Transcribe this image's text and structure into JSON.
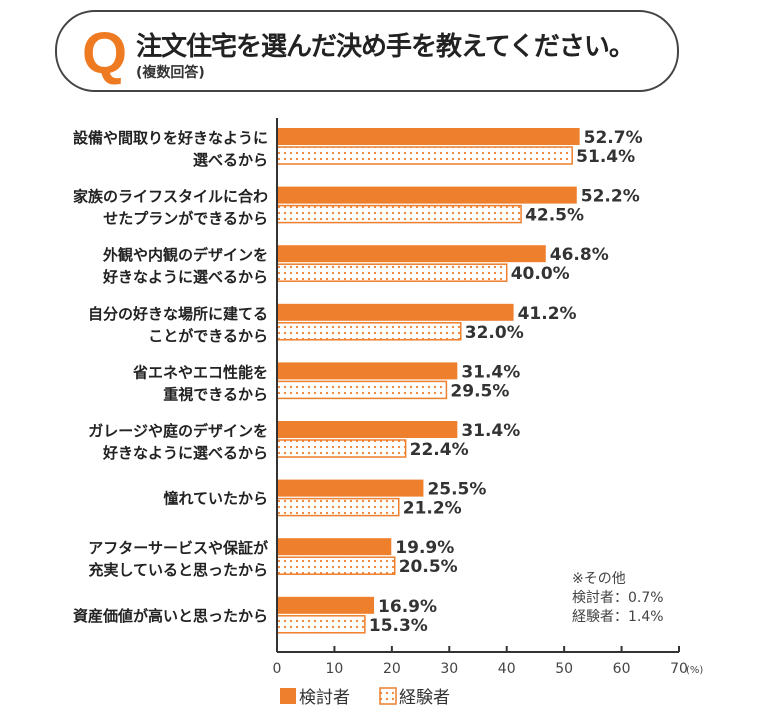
{
  "header": {
    "q_mark": "Q",
    "title": "注文住宅を選んだ決め手を教えてください。",
    "subtitle": "(複数回答)"
  },
  "note": {
    "title": "※その他",
    "line1": "検討者：0.7%",
    "line2": "経験者：1.4%"
  },
  "chart_data": {
    "type": "bar",
    "orientation": "horizontal",
    "categories": [
      [
        "設備や間取りを好きなように",
        "選べるから"
      ],
      [
        "家族のライフスタイルに合わ",
        "せたプランができるから"
      ],
      [
        "外観や内観のデザインを",
        "好きなように選べるから"
      ],
      [
        "自分の好きな場所に建てる",
        "ことができるから"
      ],
      [
        "省エネやエコ性能を",
        "重視できるから"
      ],
      [
        "ガレージや庭のデザインを",
        "好きなように選べるから"
      ],
      [
        "憧れていたから"
      ],
      [
        "アフターサービスや保証が",
        "充実していると思ったから"
      ],
      [
        "資産価値が高いと思ったから"
      ]
    ],
    "series": [
      {
        "name": "検討者",
        "values": [
          52.7,
          52.2,
          46.8,
          41.2,
          31.4,
          31.4,
          25.5,
          19.9,
          16.9
        ],
        "labels": [
          "52.7%",
          "52.2%",
          "46.8%",
          "41.2%",
          "31.4%",
          "31.4%",
          "25.5%",
          "19.9%",
          "16.9%"
        ],
        "color": "#ee7f2d",
        "style": "solid"
      },
      {
        "name": "経験者",
        "values": [
          51.4,
          42.5,
          40.0,
          32.0,
          29.5,
          22.4,
          21.2,
          20.5,
          15.3
        ],
        "labels": [
          "51.4%",
          "42.5%",
          "40.0%",
          "32.0%",
          "29.5%",
          "22.4%",
          "21.2%",
          "20.5%",
          "15.3%"
        ],
        "color": "#ee7f2d",
        "style": "dotted"
      }
    ],
    "xlim": [
      0,
      70
    ],
    "xticks": [
      "0",
      "10",
      "20",
      "30",
      "40",
      "50",
      "60",
      "70"
    ],
    "xunit": "(%)",
    "grid": false,
    "legend": "bottom-left"
  }
}
